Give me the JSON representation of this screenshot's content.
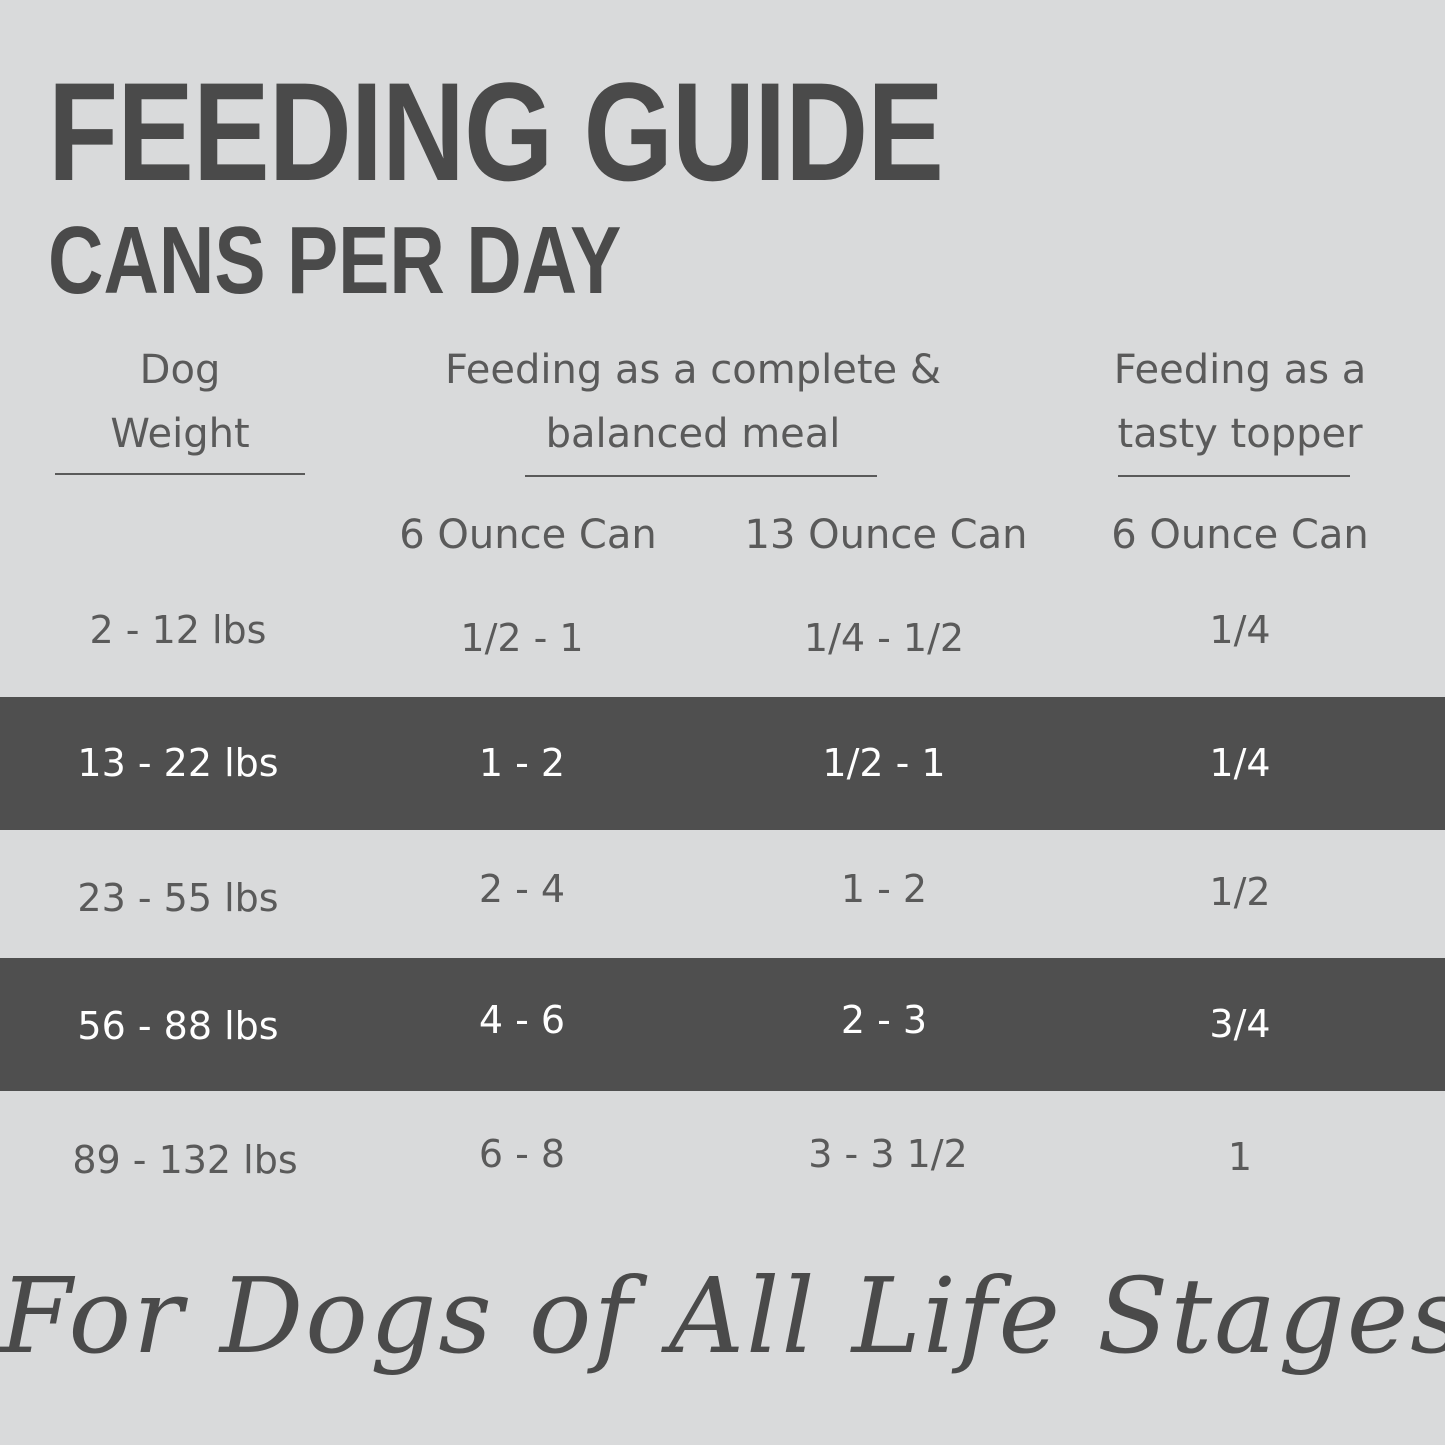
{
  "title": "FEEDING GUIDE",
  "subtitle": "CANS PER DAY",
  "headers": {
    "weight": [
      "Dog",
      "Weight"
    ],
    "complete": [
      "Feeding as a complete &",
      "balanced meal"
    ],
    "topper": [
      "Feeding as a",
      "tasty topper"
    ]
  },
  "subheaders": [
    "6 Ounce Can",
    "13 Ounce Can",
    "6 Ounce Can"
  ],
  "colors": {
    "background": "#d9dadb",
    "band": "#4f4f4f",
    "text": "#565656"
  },
  "rows": [
    {
      "weight": "2 - 12 lbs",
      "six_oz": "1/2 - 1",
      "thirteen_oz": "1/4 - 1/2",
      "topper": "1/4",
      "highlighted": false
    },
    {
      "weight": "13 - 22 lbs",
      "six_oz": "1 - 2",
      "thirteen_oz": "1/2 - 1",
      "topper": "1/4",
      "highlighted": true
    },
    {
      "weight": "23 - 55 lbs",
      "six_oz": "2 - 4",
      "thirteen_oz": "1 - 2",
      "topper": "1/2",
      "highlighted": false
    },
    {
      "weight": "56 - 88 lbs",
      "six_oz": "4 - 6",
      "thirteen_oz": "2 - 3",
      "topper": "3/4",
      "highlighted": true
    },
    {
      "weight": "89 - 132 lbs",
      "six_oz": "6 - 8",
      "thirteen_oz": "3 - 3 1/2",
      "topper": "1",
      "highlighted": false
    }
  ],
  "footer": "For Dogs of All Life Stages"
}
